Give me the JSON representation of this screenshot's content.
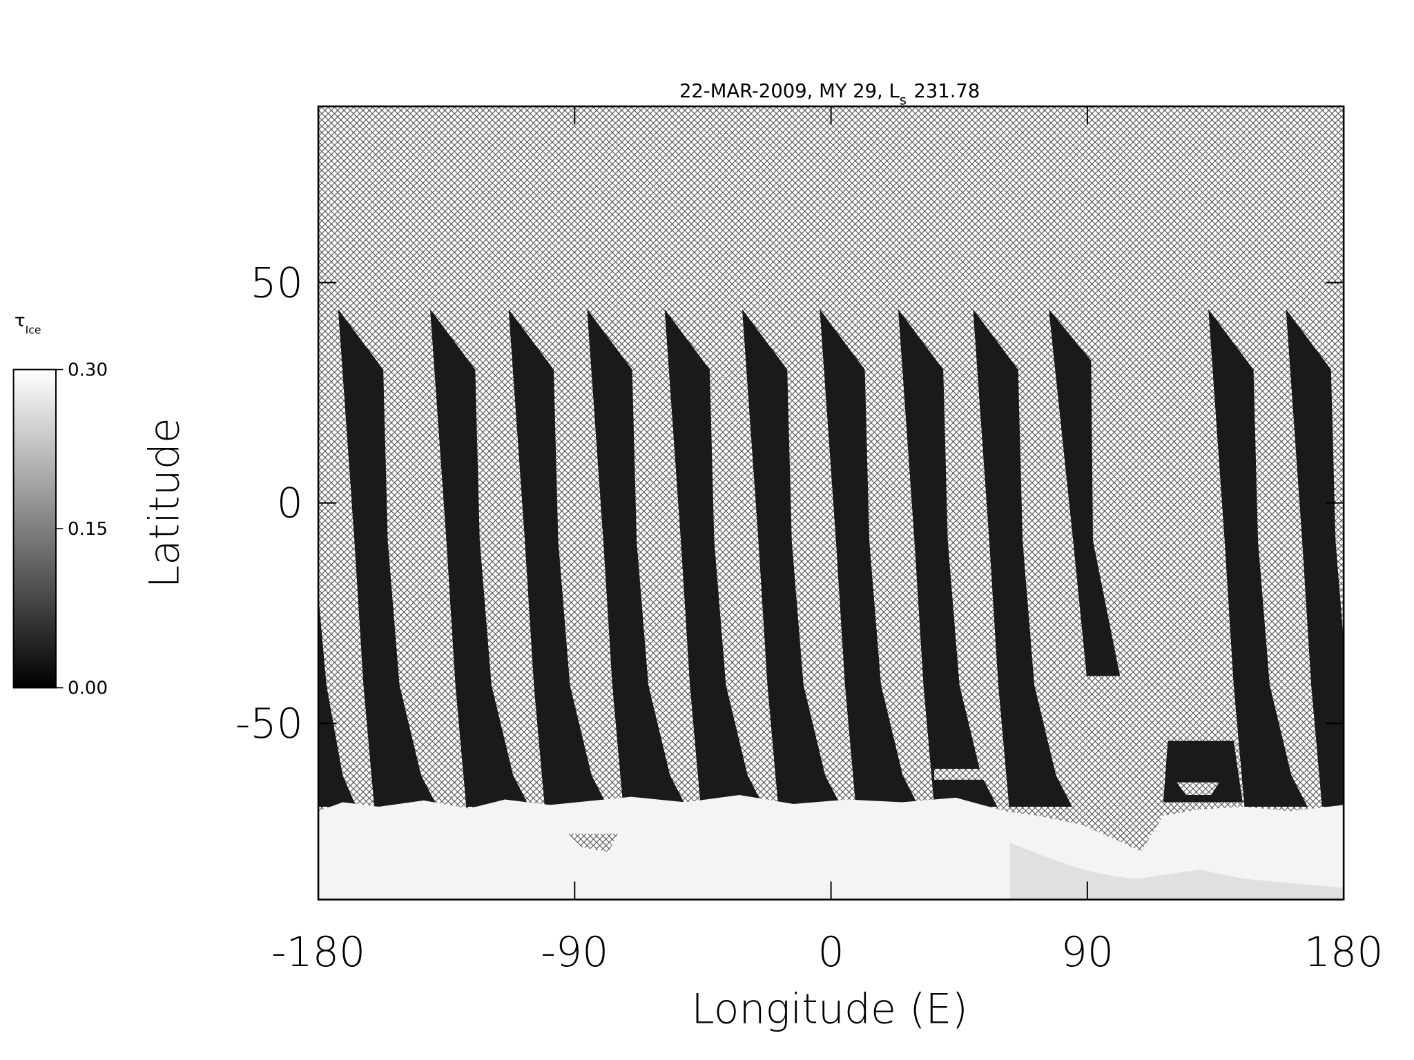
{
  "chart_data": {
    "type": "map",
    "title": "22-MAR-2009, MY 29,  L",
    "title_subscript": "s",
    "title_suffix": "231.78",
    "xlabel": "Longitude (E)",
    "ylabel": "Latitude",
    "xlim": [
      -180,
      180
    ],
    "xticks": [
      -180,
      -90,
      0,
      90,
      180
    ],
    "ylim": [
      -90,
      90
    ],
    "yticks": [
      -50,
      0,
      50
    ],
    "colorbar": {
      "label": "τ",
      "label_subscript": "Ice",
      "lim": [
        0,
        0.3
      ],
      "ticks": [
        {
          "value": 0.3,
          "label": "0.30"
        },
        {
          "value": 0.15,
          "label": "0.15"
        },
        {
          "value": 0,
          "label": "0.00"
        }
      ],
      "colors": [
        "#000000",
        "#ffffff"
      ]
    }
  }
}
